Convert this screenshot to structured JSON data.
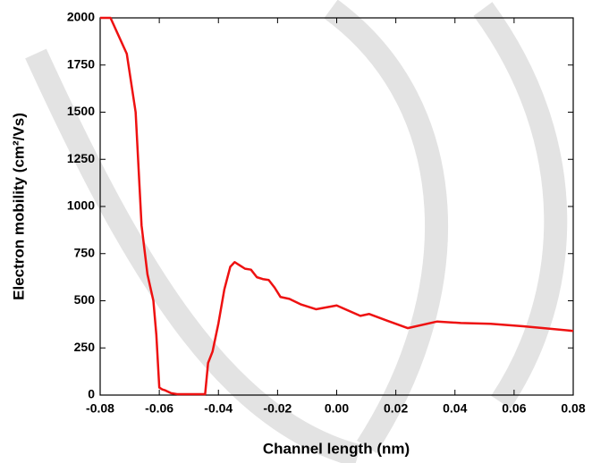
{
  "chart_data": {
    "type": "line",
    "x_label": "Channel length (nm)",
    "y_label": "Electron mobility (cm²/Vs)",
    "x": [
      -0.08,
      -0.0765,
      -0.071,
      -0.068,
      -0.066,
      -0.064,
      -0.062,
      -0.061,
      -0.06,
      -0.059,
      -0.058,
      -0.056,
      -0.054,
      -0.05,
      -0.0445,
      -0.0435,
      -0.042,
      -0.04,
      -0.038,
      -0.036,
      -0.0345,
      -0.033,
      -0.031,
      -0.029,
      -0.027,
      -0.025,
      -0.023,
      -0.021,
      -0.019,
      -0.016,
      -0.012,
      -0.007,
      0,
      0.008,
      0.011,
      0.017,
      0.024,
      0.034,
      0.042,
      0.052,
      0.063,
      0.07,
      0.08
    ],
    "series": [
      {
        "color": "#ee1111",
        "values": [
          2000,
          2000,
          1810,
          1500,
          900,
          640,
          500,
          320,
          40,
          30,
          25,
          10,
          5,
          5,
          5,
          170,
          230,
          380,
          560,
          680,
          705,
          690,
          670,
          665,
          625,
          615,
          610,
          570,
          520,
          510,
          480,
          455,
          475,
          420,
          430,
          395,
          355,
          390,
          382,
          378,
          365,
          355,
          340
        ]
      }
    ],
    "xlim": [
      -0.08,
      0.08
    ],
    "xticks": [
      -0.08,
      -0.06,
      -0.04,
      -0.02,
      {
        "value": 0,
        "label": "0.00"
      },
      0.02,
      0.04,
      0.06,
      0.08
    ],
    "ylim": [
      0,
      2000
    ],
    "yticks": [
      0,
      250,
      500,
      750,
      1000,
      1250,
      1500,
      1750,
      2000
    ]
  }
}
